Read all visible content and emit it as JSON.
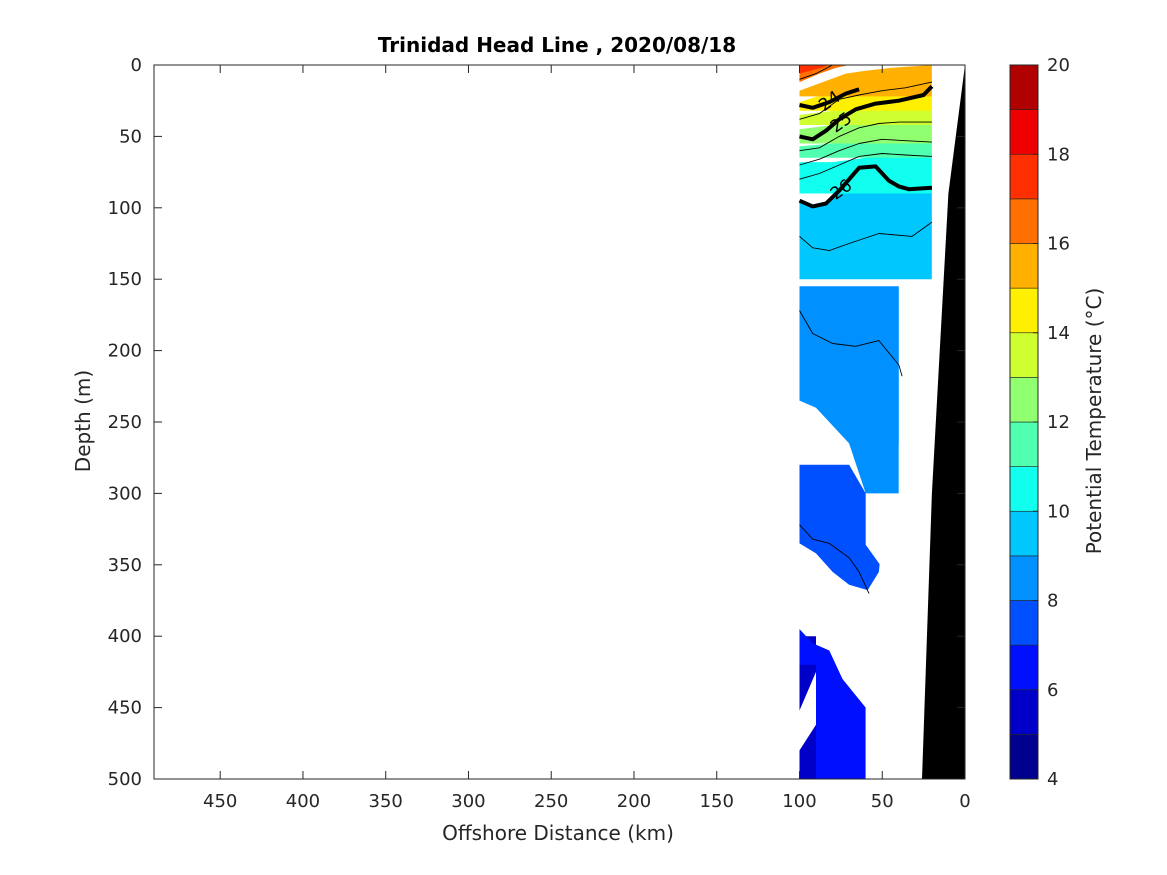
{
  "chart_data": {
    "type": "contour",
    "title": "Trinidad Head Line , 2020/08/18",
    "xlabel": "Offshore Distance (km)",
    "ylabel": "Depth (m)",
    "xlim": [
      490,
      0
    ],
    "ylim": [
      0,
      500
    ],
    "y_reversed": true,
    "x_ticks": [
      450,
      400,
      350,
      300,
      250,
      200,
      150,
      100,
      50,
      0
    ],
    "y_ticks": [
      0,
      50,
      100,
      150,
      200,
      250,
      300,
      350,
      400,
      450,
      500
    ],
    "colorbar": {
      "label": "Potential Temperature (°C)",
      "range": [
        4,
        20
      ],
      "ticks": [
        4,
        6,
        8,
        10,
        12,
        14,
        16,
        18,
        20
      ],
      "levels": [
        {
          "from": 4,
          "to": 5,
          "color": "#00008f"
        },
        {
          "from": 5,
          "to": 6,
          "color": "#0000c8"
        },
        {
          "from": 6,
          "to": 7,
          "color": "#0010ff"
        },
        {
          "from": 7,
          "to": 8,
          "color": "#0050ff"
        },
        {
          "from": 8,
          "to": 9,
          "color": "#0090ff"
        },
        {
          "from": 9,
          "to": 10,
          "color": "#00c8ff"
        },
        {
          "from": 10,
          "to": 11,
          "color": "#10ffef"
        },
        {
          "from": 11,
          "to": 12,
          "color": "#50ffaf"
        },
        {
          "from": 12,
          "to": 13,
          "color": "#90ff70"
        },
        {
          "from": 13,
          "to": 14,
          "color": "#cfff30"
        },
        {
          "from": 14,
          "to": 15,
          "color": "#ffef00"
        },
        {
          "from": 15,
          "to": 16,
          "color": "#ffb000"
        },
        {
          "from": 16,
          "to": 17,
          "color": "#ff7000"
        },
        {
          "from": 17,
          "to": 18,
          "color": "#ff3000"
        },
        {
          "from": 18,
          "to": 19,
          "color": "#ef0000"
        },
        {
          "from": 19,
          "to": 20,
          "color": "#b00000"
        }
      ]
    },
    "temperature_layers": [
      {
        "value": 5.5,
        "boundary": [
          [
            90,
            500
          ],
          [
            90,
            462
          ],
          [
            100,
            480
          ],
          [
            100,
            452
          ],
          [
            90,
            425
          ],
          [
            90,
            400
          ],
          [
            100,
            400
          ],
          [
            100,
            500
          ]
        ]
      },
      {
        "value": 6.5,
        "boundary": [
          [
            100,
            395
          ],
          [
            92,
            405
          ],
          [
            82,
            410
          ],
          [
            74,
            430
          ],
          [
            60,
            450
          ],
          [
            60,
            500
          ],
          [
            90,
            500
          ],
          [
            90,
            420
          ],
          [
            100,
            420
          ]
        ]
      },
      {
        "value": 7.5,
        "boundary": [
          [
            100,
            335
          ],
          [
            90,
            342
          ],
          [
            80,
            355
          ],
          [
            70,
            364
          ],
          [
            58,
            368
          ],
          [
            50,
            352
          ],
          [
            60,
            336
          ],
          [
            60,
            300
          ],
          [
            70,
            280
          ],
          [
            100,
            280
          ]
        ]
      },
      {
        "value": 8.5,
        "boundary": [
          [
            100,
            155
          ],
          [
            40,
            155
          ],
          [
            40,
            300
          ],
          [
            60,
            300
          ],
          [
            70,
            265
          ],
          [
            90,
            240
          ],
          [
            100,
            235
          ]
        ]
      },
      {
        "value": 9.5,
        "boundary": [
          [
            100,
            95
          ],
          [
            88,
            99
          ],
          [
            76,
            88
          ],
          [
            64,
            70
          ],
          [
            45,
            72
          ],
          [
            35,
            85
          ],
          [
            20,
            88
          ],
          [
            20,
            150
          ],
          [
            100,
            150
          ]
        ]
      },
      {
        "value": 10.5,
        "boundary": [
          [
            100,
            68
          ],
          [
            80,
            68
          ],
          [
            60,
            65
          ],
          [
            40,
            62
          ],
          [
            20,
            60
          ],
          [
            20,
            90
          ],
          [
            100,
            90
          ]
        ]
      },
      {
        "value": 11.5,
        "boundary": [
          [
            100,
            57
          ],
          [
            80,
            55
          ],
          [
            60,
            52
          ],
          [
            40,
            50
          ],
          [
            20,
            48
          ],
          [
            20,
            65
          ],
          [
            100,
            65
          ]
        ]
      },
      {
        "value": 12.5,
        "boundary": [
          [
            100,
            45
          ],
          [
            80,
            42
          ],
          [
            60,
            38
          ],
          [
            40,
            36
          ],
          [
            20,
            34
          ],
          [
            20,
            55
          ],
          [
            100,
            55
          ]
        ]
      },
      {
        "value": 13.5,
        "boundary": [
          [
            100,
            35
          ],
          [
            80,
            32
          ],
          [
            60,
            28
          ],
          [
            40,
            25
          ],
          [
            20,
            22
          ],
          [
            20,
            42
          ],
          [
            100,
            42
          ]
        ]
      },
      {
        "value": 14.5,
        "boundary": [
          [
            100,
            26
          ],
          [
            84,
            20
          ],
          [
            66,
            16
          ],
          [
            50,
            12
          ],
          [
            30,
            10
          ],
          [
            20,
            8
          ],
          [
            20,
            32
          ],
          [
            100,
            32
          ]
        ]
      },
      {
        "value": 15.5,
        "boundary": [
          [
            100,
            18
          ],
          [
            86,
            12
          ],
          [
            72,
            6
          ],
          [
            60,
            4
          ],
          [
            45,
            2
          ],
          [
            20,
            0
          ],
          [
            20,
            22
          ],
          [
            100,
            22
          ]
        ]
      },
      {
        "value": 16.5,
        "boundary": [
          [
            100,
            12
          ],
          [
            88,
            6
          ],
          [
            78,
            2
          ],
          [
            70,
            0
          ],
          [
            100,
            0
          ]
        ]
      },
      {
        "value": 17.5,
        "boundary": [
          [
            100,
            6
          ],
          [
            90,
            3
          ],
          [
            82,
            0
          ],
          [
            100,
            0
          ]
        ]
      }
    ],
    "density_contours": [
      {
        "label": "24",
        "bold": true,
        "points": [
          [
            100,
            28
          ],
          [
            92,
            30
          ],
          [
            82,
            26
          ],
          [
            72,
            20
          ],
          [
            64,
            17
          ]
        ],
        "label_at": [
          82,
          25
        ]
      },
      {
        "label": "25",
        "bold": true,
        "points": [
          [
            100,
            50
          ],
          [
            92,
            52
          ],
          [
            84,
            46
          ],
          [
            76,
            38
          ],
          [
            66,
            31
          ],
          [
            54,
            27
          ],
          [
            40,
            25
          ],
          [
            25,
            21
          ],
          [
            20,
            15
          ]
        ],
        "label_at": [
          75,
          40
        ]
      },
      {
        "label": "26",
        "bold": true,
        "points": [
          [
            100,
            95
          ],
          [
            92,
            99
          ],
          [
            84,
            97
          ],
          [
            76,
            88
          ],
          [
            64,
            72
          ],
          [
            54,
            71
          ],
          [
            46,
            81
          ],
          [
            40,
            85
          ],
          [
            34,
            87
          ],
          [
            20,
            86
          ]
        ],
        "label_at": [
          75,
          87
        ]
      },
      {
        "label": "",
        "bold": false,
        "points": [
          [
            100,
            10
          ],
          [
            90,
            6
          ],
          [
            80,
            0
          ]
        ]
      },
      {
        "label": "",
        "bold": false,
        "points": [
          [
            100,
            38
          ],
          [
            88,
            34
          ],
          [
            76,
            24
          ],
          [
            64,
            21
          ],
          [
            50,
            18
          ],
          [
            36,
            16
          ],
          [
            20,
            12
          ]
        ]
      },
      {
        "label": "",
        "bold": false,
        "points": [
          [
            100,
            60
          ],
          [
            88,
            58
          ],
          [
            76,
            50
          ],
          [
            64,
            44
          ],
          [
            52,
            41
          ],
          [
            40,
            40
          ],
          [
            20,
            40
          ]
        ]
      },
      {
        "label": "",
        "bold": false,
        "points": [
          [
            100,
            70
          ],
          [
            88,
            66
          ],
          [
            76,
            60
          ],
          [
            64,
            55
          ],
          [
            50,
            52
          ],
          [
            36,
            53
          ],
          [
            20,
            54
          ]
        ]
      },
      {
        "label": "",
        "bold": false,
        "points": [
          [
            100,
            80
          ],
          [
            88,
            76
          ],
          [
            76,
            70
          ],
          [
            64,
            64
          ],
          [
            50,
            62
          ],
          [
            36,
            63
          ],
          [
            20,
            64
          ]
        ]
      },
      {
        "label": "",
        "bold": false,
        "points": [
          [
            100,
            120
          ],
          [
            92,
            128
          ],
          [
            82,
            130
          ],
          [
            70,
            125
          ],
          [
            52,
            118
          ],
          [
            32,
            120
          ],
          [
            20,
            110
          ]
        ]
      },
      {
        "label": "",
        "bold": false,
        "points": [
          [
            100,
            172
          ],
          [
            92,
            188
          ],
          [
            80,
            195
          ],
          [
            66,
            197
          ],
          [
            52,
            193
          ],
          [
            40,
            210
          ],
          [
            38,
            218
          ]
        ]
      },
      {
        "label": "",
        "bold": false,
        "points": [
          [
            100,
            322
          ],
          [
            92,
            332
          ],
          [
            82,
            335
          ],
          [
            70,
            345
          ],
          [
            64,
            355
          ],
          [
            58,
            370
          ]
        ]
      }
    ],
    "bathymetry": [
      [
        26,
        500
      ],
      [
        20,
        300
      ],
      [
        10,
        90
      ],
      [
        0,
        0
      ],
      [
        0,
        500
      ]
    ],
    "sampled_region": [
      [
        100,
        0
      ],
      [
        20,
        0
      ],
      [
        20,
        150
      ],
      [
        30,
        180
      ],
      [
        30,
        260
      ],
      [
        40,
        265
      ],
      [
        40,
        300
      ],
      [
        48,
        305
      ],
      [
        50,
        330
      ],
      [
        52,
        355
      ],
      [
        60,
        370
      ],
      [
        60,
        500
      ],
      [
        100,
        500
      ]
    ]
  }
}
